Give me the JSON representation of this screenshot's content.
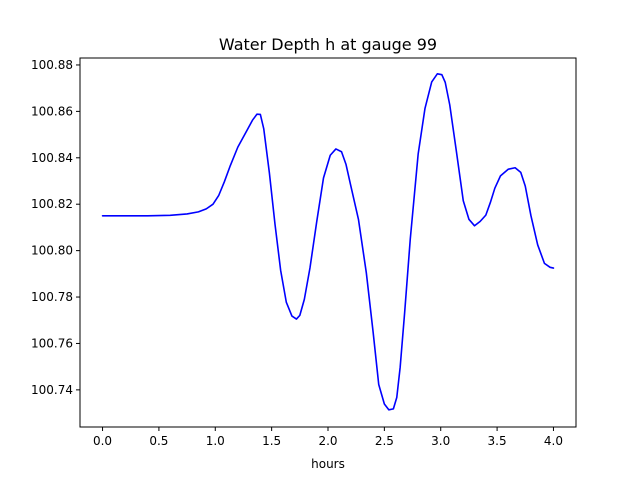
{
  "chart_data": {
    "type": "line",
    "title": "Water Depth h at gauge 99",
    "xlabel": "hours",
    "ylabel": "",
    "xlim": [
      -0.2,
      4.2
    ],
    "ylim": [
      100.724,
      100.883
    ],
    "grid": false,
    "xticks": [
      0.0,
      0.5,
      1.0,
      1.5,
      2.0,
      2.5,
      3.0,
      3.5,
      4.0
    ],
    "xtick_labels": [
      "0.0",
      "0.5",
      "1.0",
      "1.5",
      "2.0",
      "2.5",
      "3.0",
      "3.5",
      "4.0"
    ],
    "yticks": [
      100.74,
      100.76,
      100.78,
      100.8,
      100.82,
      100.84,
      100.86,
      100.88
    ],
    "ytick_labels": [
      "100.74",
      "100.76",
      "100.78",
      "100.80",
      "100.82",
      "100.84",
      "100.86",
      "100.88"
    ],
    "series": [
      {
        "color": "#0000ff",
        "x": [
          0.0,
          0.2,
          0.4,
          0.6,
          0.75,
          0.85,
          0.92,
          0.98,
          1.03,
          1.08,
          1.13,
          1.2,
          1.28,
          1.33,
          1.37,
          1.4,
          1.43,
          1.48,
          1.53,
          1.58,
          1.63,
          1.68,
          1.72,
          1.75,
          1.79,
          1.84,
          1.9,
          1.96,
          2.02,
          2.07,
          2.12,
          2.16,
          2.2,
          2.27,
          2.34,
          2.4,
          2.45,
          2.5,
          2.54,
          2.58,
          2.61,
          2.64,
          2.68,
          2.73,
          2.8,
          2.86,
          2.92,
          2.97,
          3.01,
          3.04,
          3.08,
          3.14,
          3.2,
          3.25,
          3.3,
          3.35,
          3.4,
          3.44,
          3.48,
          3.53,
          3.6,
          3.66,
          3.71,
          3.75,
          3.8,
          3.86,
          3.92,
          3.97,
          4.0
        ],
        "y": [
          100.815,
          100.815,
          100.815,
          100.8152,
          100.8158,
          100.8167,
          100.818,
          100.82,
          100.8237,
          100.8296,
          100.8362,
          100.8446,
          100.8517,
          100.8562,
          100.8588,
          100.8587,
          100.8525,
          100.8335,
          100.8113,
          100.7915,
          100.7778,
          100.7718,
          100.7705,
          100.7721,
          100.779,
          100.7925,
          100.8125,
          100.8313,
          100.8411,
          100.8438,
          100.8426,
          100.8371,
          100.8284,
          100.8135,
          100.7904,
          100.765,
          100.7423,
          100.7339,
          100.7314,
          100.7318,
          100.7367,
          100.7497,
          100.7733,
          100.8051,
          100.8417,
          100.8612,
          100.8727,
          100.8762,
          100.8758,
          100.8725,
          100.8628,
          100.8424,
          100.8215,
          100.8135,
          100.8107,
          100.8126,
          100.8153,
          100.8207,
          100.8269,
          100.8322,
          100.8351,
          100.8357,
          100.8337,
          100.8278,
          100.8151,
          100.8025,
          100.7945,
          100.7928,
          100.7925
        ]
      }
    ]
  }
}
